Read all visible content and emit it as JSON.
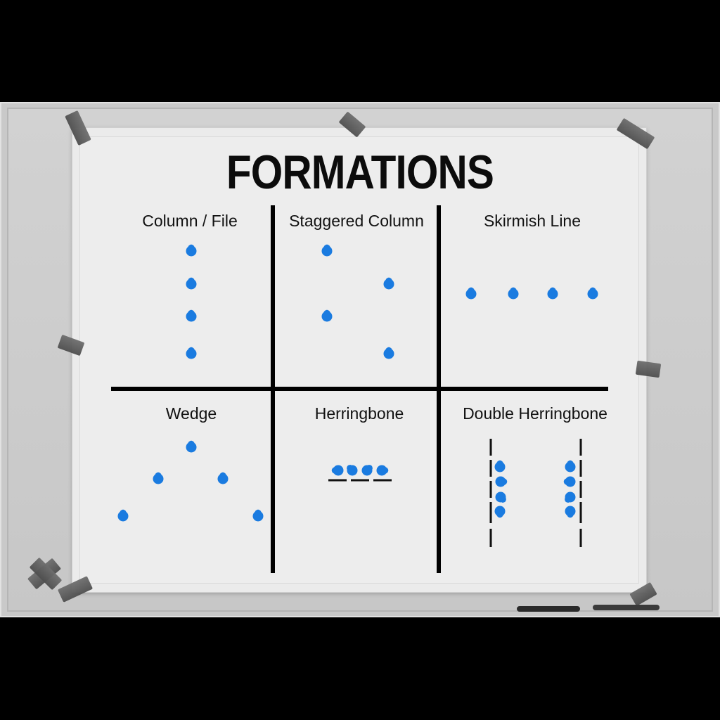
{
  "title": "FORMATIONS",
  "accent_color": "#1a7be0",
  "panels": [
    {
      "label": "Column / File"
    },
    {
      "label": "Staggered Column"
    },
    {
      "label": "Skirmish Line"
    },
    {
      "label": "Wedge"
    },
    {
      "label": "Herringbone"
    },
    {
      "label": "Double Herringbone"
    }
  ],
  "icons": {
    "soldier": "soldier-marker-icon",
    "tape": "tape-strip-icon",
    "marker": "whiteboard-marker-icon"
  }
}
